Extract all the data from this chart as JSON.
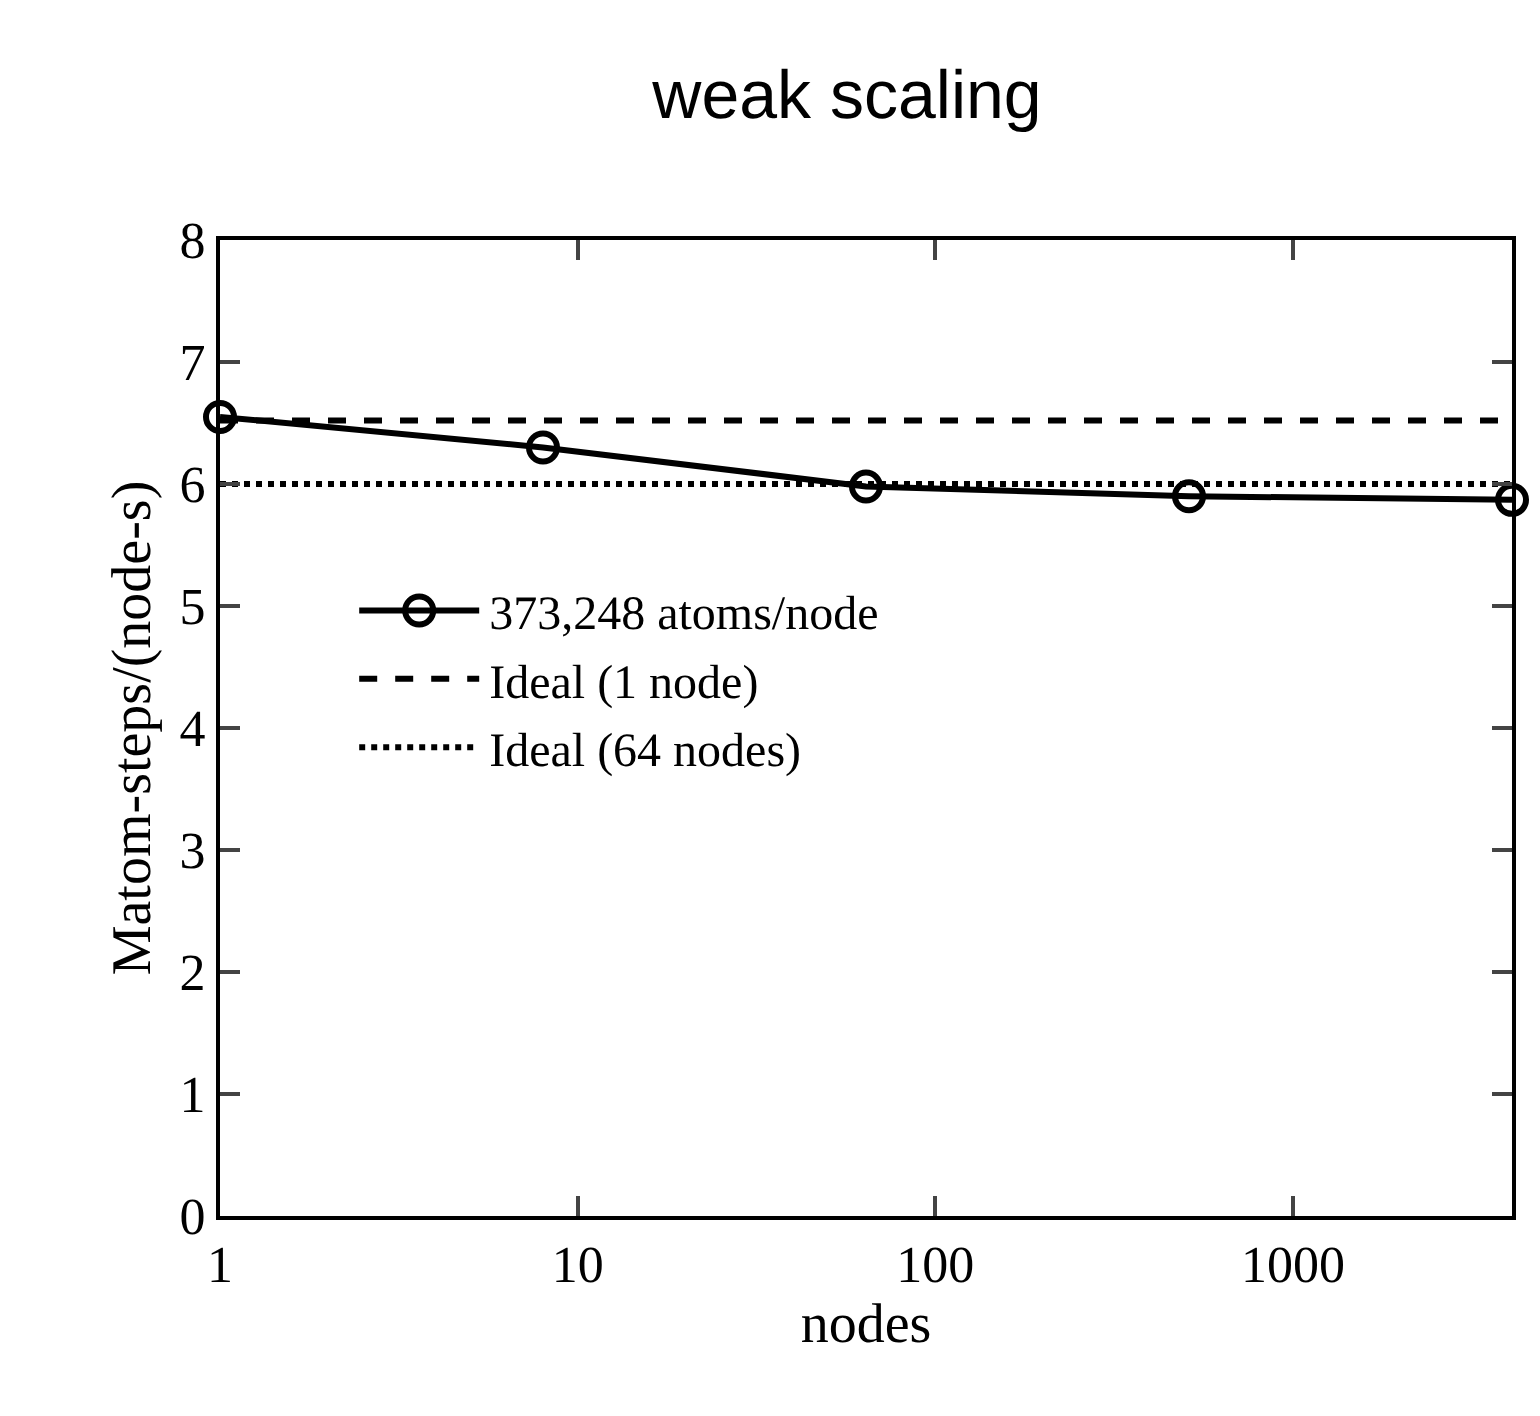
{
  "chart_data": {
    "type": "line",
    "title": "weak scaling",
    "xlabel": "nodes",
    "ylabel": "Matom-steps/(node-s)",
    "x": [
      1,
      8,
      64,
      512,
      4096
    ],
    "series": [
      {
        "name": "373,248 atoms/node",
        "color": "#000000",
        "values": [
          6.55,
          6.3,
          5.98,
          5.9,
          5.87
        ],
        "marker": "circle",
        "line_style": "solid"
      },
      {
        "name": "Ideal (1 node)",
        "color": "#000000",
        "values": [
          6.52,
          6.52,
          6.52,
          6.52,
          6.52
        ],
        "marker": "none",
        "line_style": "dashed"
      },
      {
        "name": "Ideal (64 nodes)",
        "color": "#000000",
        "values": [
          6.0,
          6.0,
          6.0,
          6.0,
          6.0
        ],
        "marker": "none",
        "line_style": "dotted"
      }
    ],
    "log": "x",
    "xlim": [
      1,
      4096
    ],
    "xticks": [
      1,
      10,
      100,
      1000
    ],
    "ylim": [
      0,
      8
    ],
    "yticks": [
      0,
      1,
      2,
      3,
      4,
      5,
      6,
      7,
      8
    ],
    "legend": "left"
  }
}
